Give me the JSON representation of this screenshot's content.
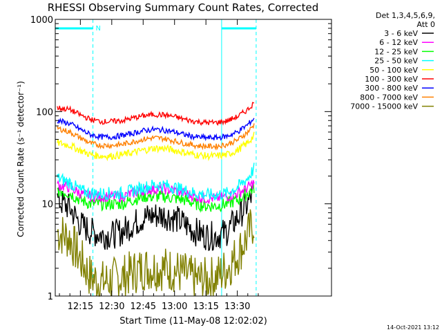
{
  "chart_data": {
    "type": "line",
    "title": "RHESSI Observing Summary Count Rates, Corrected",
    "xlabel": "Start Time (11-May-08 12:02:02)",
    "ylabel": "Corrected Count Rate (s⁻¹ detector⁻¹)",
    "yscale": "log",
    "ylim": [
      1,
      1000
    ],
    "xlim_minutes": [
      12.03,
      14.15
    ],
    "x_ticks": [
      "12:15",
      "12:30",
      "12:45",
      "13:00",
      "13:15",
      "13:30"
    ],
    "y_ticks": [
      "1",
      "10",
      "100",
      "1000"
    ],
    "header": [
      "Det 1,3,4,5,6,9,",
      "Att 0"
    ],
    "timestamp": "14-Oct-2021 13:12",
    "night_label": "N",
    "series": [
      {
        "name": "3 - 6 keV",
        "color": "#000000",
        "x": [
          12.04,
          12.1,
          12.15,
          12.2,
          12.25,
          12.3,
          12.35,
          12.4,
          12.45,
          12.5,
          12.55,
          13.0,
          13.05,
          13.1,
          13.15,
          13.2,
          13.25,
          13.3,
          13.35,
          13.38
        ],
        "values": [
          11,
          9,
          6,
          5,
          4.6,
          4.6,
          5,
          6,
          7,
          7.5,
          7.5,
          7,
          6,
          5,
          4.5,
          4.5,
          5,
          7,
          10,
          14
        ]
      },
      {
        "name": "6 - 12 keV",
        "color": "#ff00ff",
        "x": [
          12.04,
          12.1,
          12.15,
          12.2,
          12.25,
          12.3,
          12.35,
          12.4,
          12.45,
          12.5,
          12.55,
          13.0,
          13.05,
          13.1,
          13.15,
          13.2,
          13.25,
          13.3,
          13.35,
          13.38
        ],
        "values": [
          16,
          15,
          13,
          12,
          12,
          12,
          12,
          13,
          14,
          14.5,
          14.5,
          14,
          13,
          12,
          11.5,
          11.5,
          12,
          13,
          15,
          17
        ]
      },
      {
        "name": "12 - 25 keV",
        "color": "#00ff00",
        "x": [
          12.04,
          12.1,
          12.15,
          12.2,
          12.25,
          12.3,
          12.35,
          12.4,
          12.45,
          12.5,
          12.55,
          13.0,
          13.05,
          13.1,
          13.15,
          13.2,
          13.25,
          13.3,
          13.35,
          13.38
        ],
        "values": [
          14,
          13,
          11,
          10,
          10,
          10,
          10,
          11,
          12,
          12,
          12,
          11.5,
          11,
          10,
          9.5,
          9.5,
          10,
          11,
          13,
          15
        ]
      },
      {
        "name": "25 - 50 keV",
        "color": "#00ffff",
        "x": [
          12.04,
          12.1,
          12.15,
          12.2,
          12.25,
          12.3,
          12.35,
          12.4,
          12.45,
          12.5,
          12.55,
          13.0,
          13.05,
          13.1,
          13.15,
          13.2,
          13.25,
          13.3,
          13.35,
          13.38
        ],
        "values": [
          19,
          17,
          14,
          13,
          13,
          13,
          13,
          14,
          15,
          16,
          16,
          15,
          14,
          13,
          12.5,
          12.5,
          13,
          15,
          19,
          24
        ]
      },
      {
        "name": "50 - 100 keV",
        "color": "#ffff00",
        "x": [
          12.04,
          12.1,
          12.15,
          12.2,
          12.25,
          12.3,
          12.35,
          12.4,
          12.45,
          12.5,
          12.55,
          13.0,
          13.05,
          13.1,
          13.15,
          13.2,
          13.25,
          13.3,
          13.35,
          13.38
        ],
        "values": [
          46,
          43,
          38,
          34,
          33,
          33,
          34,
          36,
          38,
          40,
          40,
          38,
          36,
          34,
          33,
          33,
          34,
          38,
          46,
          55
        ]
      },
      {
        "name": "100 - 300 keV",
        "color": "#ff0000",
        "x": [
          12.04,
          12.1,
          12.15,
          12.2,
          12.25,
          12.3,
          12.35,
          12.4,
          12.45,
          12.5,
          12.55,
          13.0,
          13.05,
          13.1,
          13.15,
          13.2,
          13.25,
          13.3,
          13.35,
          13.38
        ],
        "values": [
          110,
          105,
          92,
          82,
          78,
          78,
          80,
          85,
          90,
          93,
          92,
          88,
          82,
          78,
          76,
          76,
          79,
          88,
          105,
          125
        ]
      },
      {
        "name": "300 - 800 keV",
        "color": "#0000ff",
        "x": [
          12.04,
          12.1,
          12.15,
          12.2,
          12.25,
          12.3,
          12.35,
          12.4,
          12.45,
          12.5,
          12.55,
          13.0,
          13.05,
          13.1,
          13.15,
          13.2,
          13.25,
          13.3,
          13.35,
          13.38
        ],
        "values": [
          80,
          74,
          64,
          56,
          53,
          53,
          55,
          58,
          62,
          64,
          63,
          60,
          56,
          53,
          52,
          52,
          54,
          60,
          72,
          85
        ]
      },
      {
        "name": "800 - 7000 keV",
        "color": "#ff8000",
        "x": [
          12.04,
          12.1,
          12.15,
          12.2,
          12.25,
          12.3,
          12.35,
          12.4,
          12.45,
          12.5,
          12.55,
          13.0,
          13.05,
          13.1,
          13.15,
          13.2,
          13.25,
          13.3,
          13.35,
          13.38
        ],
        "values": [
          66,
          60,
          52,
          45,
          43,
          43,
          44,
          47,
          50,
          52,
          51,
          48,
          45,
          43,
          42,
          42,
          44,
          49,
          60,
          72
        ]
      },
      {
        "name": "7000 - 15000 keV",
        "color": "#808000",
        "x": [
          12.04,
          12.1,
          12.15,
          12.2,
          12.25,
          12.3,
          12.35,
          12.4,
          12.45,
          12.5,
          12.55,
          13.0,
          13.05,
          13.1,
          13.15,
          13.2,
          13.25,
          13.3,
          13.35,
          13.38
        ],
        "values": [
          5,
          4.2,
          2.5,
          1.6,
          1.4,
          1.5,
          1.6,
          1.8,
          2,
          2,
          2,
          1.9,
          1.7,
          1.5,
          1.5,
          1.6,
          2,
          2.8,
          4.5,
          6.5
        ]
      }
    ],
    "vlines": [
      {
        "x": 12.03,
        "style": "solid",
        "color": "#00ffff"
      },
      {
        "x": 12.21,
        "style": "dashed",
        "color": "#00ffff"
      },
      {
        "x": 13.225,
        "style": "solid",
        "color": "#00ffff"
      },
      {
        "x": 13.39,
        "style": "dashed",
        "color": "#00ffff"
      }
    ],
    "night_bars": [
      {
        "x0": 12.03,
        "x1": 12.21
      },
      {
        "x0": 13.225,
        "x1": 13.39
      }
    ]
  }
}
